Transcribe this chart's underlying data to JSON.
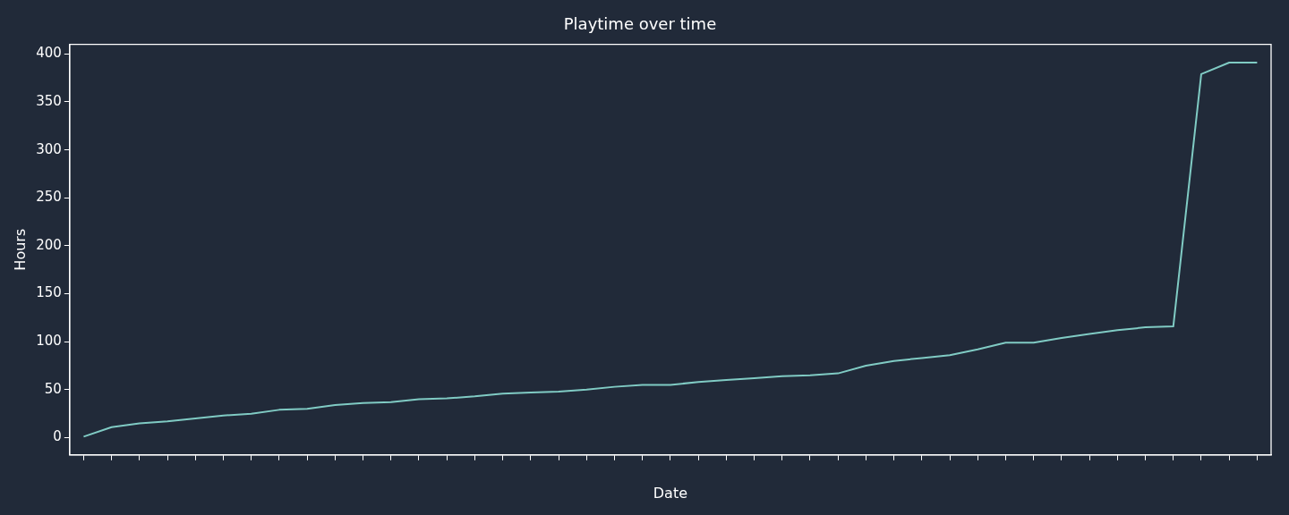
{
  "chart_data": {
    "type": "line",
    "title": "Playtime over time",
    "xlabel": "Date",
    "ylabel": "Hours",
    "categories": [
      null,
      null,
      null,
      null,
      null,
      null,
      null,
      null,
      null,
      null,
      null,
      null,
      null,
      null,
      null,
      null,
      null,
      null,
      null,
      null,
      null,
      null,
      null,
      null,
      null,
      null,
      null,
      null,
      null,
      null,
      null,
      null,
      null,
      null,
      null,
      null,
      null,
      null,
      null,
      null,
      null,
      null,
      null
    ],
    "series": [
      {
        "color": "#80cbc4",
        "values": [
          1,
          11,
          15,
          17,
          20,
          23,
          25,
          29,
          30,
          34,
          36,
          37,
          40,
          41,
          43,
          46,
          47,
          48,
          50,
          53,
          55,
          55,
          58,
          60,
          62,
          64,
          65,
          67,
          75,
          80,
          83,
          86,
          92,
          99,
          99,
          104,
          108,
          112,
          115,
          116,
          379,
          391,
          391
        ]
      }
    ],
    "ylim": [
      -18,
      410
    ],
    "yticks": [
      0,
      50,
      100,
      150,
      200,
      250,
      300,
      350,
      400
    ],
    "grid": false,
    "legend": false,
    "marker": "none",
    "line_style": "solid"
  }
}
